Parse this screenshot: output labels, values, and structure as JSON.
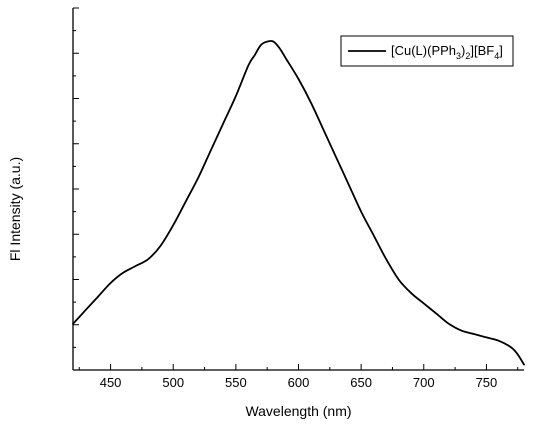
{
  "chart_data": {
    "type": "line",
    "xlabel": "Wavelength (nm)",
    "ylabel": "Fl Intensity (a.u.)",
    "xlim": [
      420,
      780
    ],
    "ylim": [
      0,
      1
    ],
    "x_ticks": [
      450,
      500,
      550,
      600,
      650,
      700,
      750
    ],
    "y_tick_labels_shown": false,
    "y_minor_tick_count": 16,
    "legend_position": "top-right",
    "series": [
      {
        "name": "[Cu(L)(PPh3)2][BF4]",
        "name_parts": {
          "a": "[Cu(L)(PPh",
          "b": "3",
          "c": ")",
          "d": "2",
          "e": "][BF",
          "f": "4",
          "g": "]"
        },
        "color": "#000000",
        "x": [
          420,
          430,
          440,
          450,
          460,
          470,
          480,
          490,
          500,
          510,
          520,
          530,
          540,
          550,
          560,
          565,
          570,
          575,
          580,
          585,
          590,
          600,
          610,
          620,
          630,
          640,
          650,
          660,
          670,
          680,
          690,
          700,
          710,
          720,
          730,
          740,
          750,
          760,
          770,
          775,
          780
        ],
        "y": [
          0.13,
          0.17,
          0.21,
          0.25,
          0.28,
          0.3,
          0.32,
          0.36,
          0.42,
          0.49,
          0.56,
          0.64,
          0.72,
          0.8,
          0.89,
          0.92,
          0.95,
          0.96,
          0.96,
          0.94,
          0.91,
          0.85,
          0.78,
          0.7,
          0.62,
          0.54,
          0.46,
          0.39,
          0.32,
          0.26,
          0.22,
          0.19,
          0.16,
          0.13,
          0.11,
          0.1,
          0.09,
          0.08,
          0.06,
          0.04,
          0.01
        ]
      }
    ]
  }
}
